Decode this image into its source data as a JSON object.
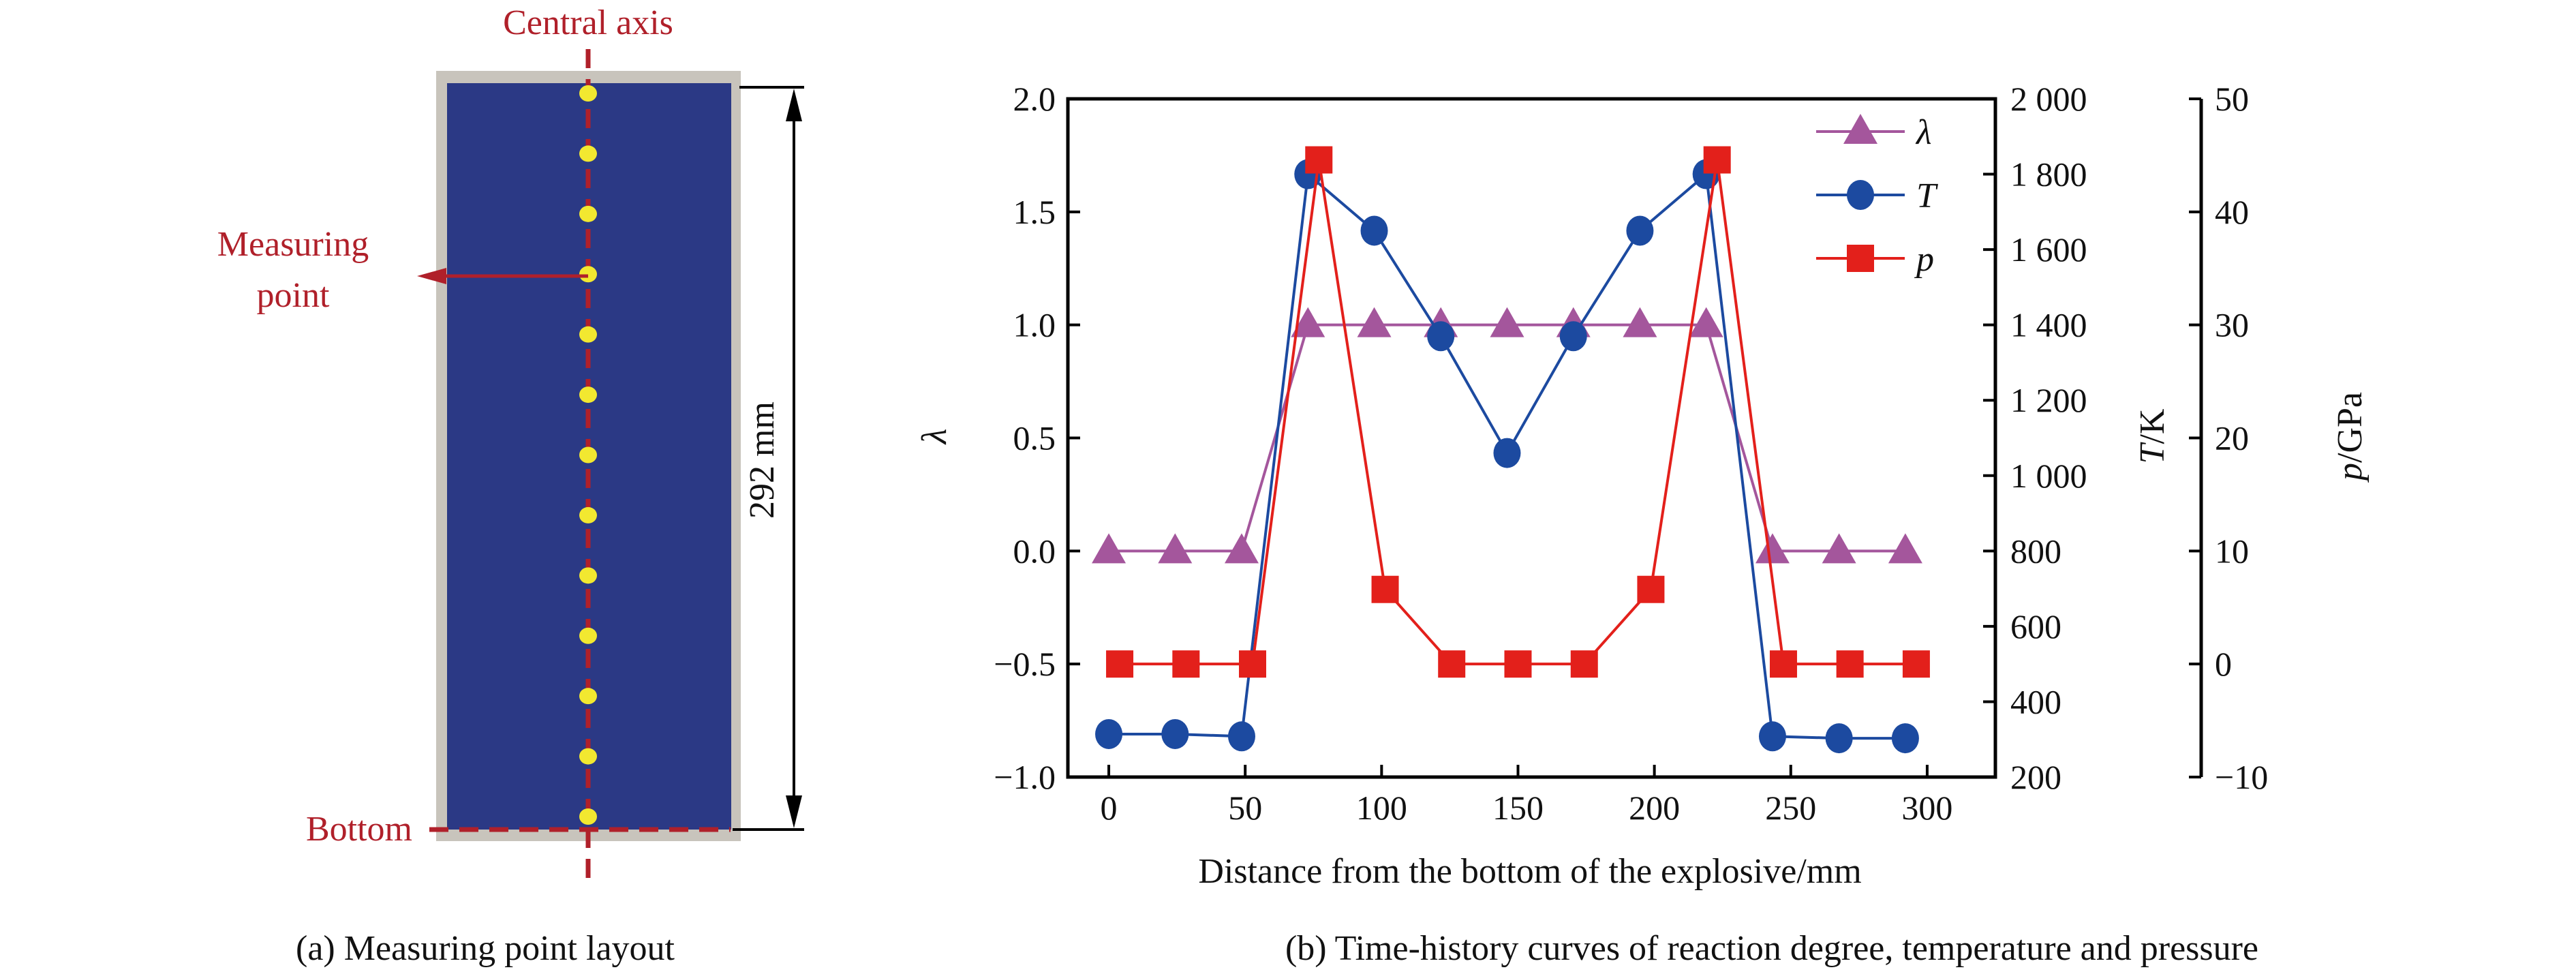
{
  "panel_a": {
    "central_axis_label": "Central axis",
    "measuring_point_label_line1": "Measuring",
    "measuring_point_label_line2": "point",
    "bottom_label": "Bottom",
    "dimension_label": "292 mm",
    "caption": "(a) Measuring point layout",
    "measuring_point_count": 13,
    "colors": {
      "explosive": "#2b3985",
      "casing": "#c8c4bc",
      "points": "#f2e830",
      "annotation": "#b0202a"
    }
  },
  "panel_b": {
    "caption": "(b) Time-history curves of reaction degree, temperature and pressure"
  },
  "chart_data": {
    "type": "line",
    "xlabel": "Distance from the bottom of the explosive/mm",
    "xlim": [
      -15,
      325
    ],
    "xticks": [
      "0",
      "50",
      "100",
      "150",
      "200",
      "250",
      "300"
    ],
    "y_left": {
      "label": "λ",
      "lim": [
        -1.0,
        2.0
      ],
      "ticks": [
        "−1.0",
        "−0.5",
        "0.0",
        "0.5",
        "1.0",
        "1.5",
        "2.0"
      ]
    },
    "y_right1": {
      "label_italic": "T",
      "label_unit": "/K",
      "lim": [
        200,
        2000
      ],
      "ticks": [
        "200",
        "400",
        "600",
        "800",
        "1 000",
        "1 200",
        "1 400",
        "1 600",
        "1 800",
        "2 000"
      ]
    },
    "y_right2": {
      "label_italic": "p",
      "label_unit": "/GPa",
      "lim": [
        -10,
        50
      ],
      "ticks": [
        "−10",
        "0",
        "10",
        "20",
        "30",
        "40",
        "50"
      ]
    },
    "legend_position": "top-right",
    "grid": false,
    "series": [
      {
        "name": "λ",
        "axis": "left",
        "marker": "triangle",
        "color": "#a4569c",
        "x": [
          0,
          24.3,
          48.7,
          73,
          97.3,
          121.7,
          146,
          170.3,
          194.7,
          219,
          243.3,
          267.7,
          292
        ],
        "values": [
          0,
          0,
          0,
          1,
          1,
          1,
          1,
          1,
          1,
          1,
          0,
          0,
          0
        ]
      },
      {
        "name": "T",
        "axis": "right1",
        "marker": "circle",
        "color": "#1c4aa0",
        "x": [
          0,
          24.3,
          48.7,
          73,
          97.3,
          121.7,
          146,
          170.3,
          194.7,
          219,
          243.3,
          267.7,
          292
        ],
        "values": [
          314,
          314,
          308,
          1800,
          1650,
          1370,
          1060,
          1370,
          1650,
          1800,
          308,
          303,
          303
        ]
      },
      {
        "name": "p",
        "axis": "right2",
        "marker": "square",
        "color": "#e3201b",
        "x": [
          4,
          28.3,
          52.7,
          77,
          101.3,
          125.7,
          150,
          174.3,
          198.7,
          223,
          247.3,
          271.7,
          296
        ],
        "values": [
          0,
          0,
          0,
          44.6,
          6.6,
          0,
          0,
          0,
          6.6,
          44.6,
          0,
          0,
          0
        ]
      }
    ]
  }
}
